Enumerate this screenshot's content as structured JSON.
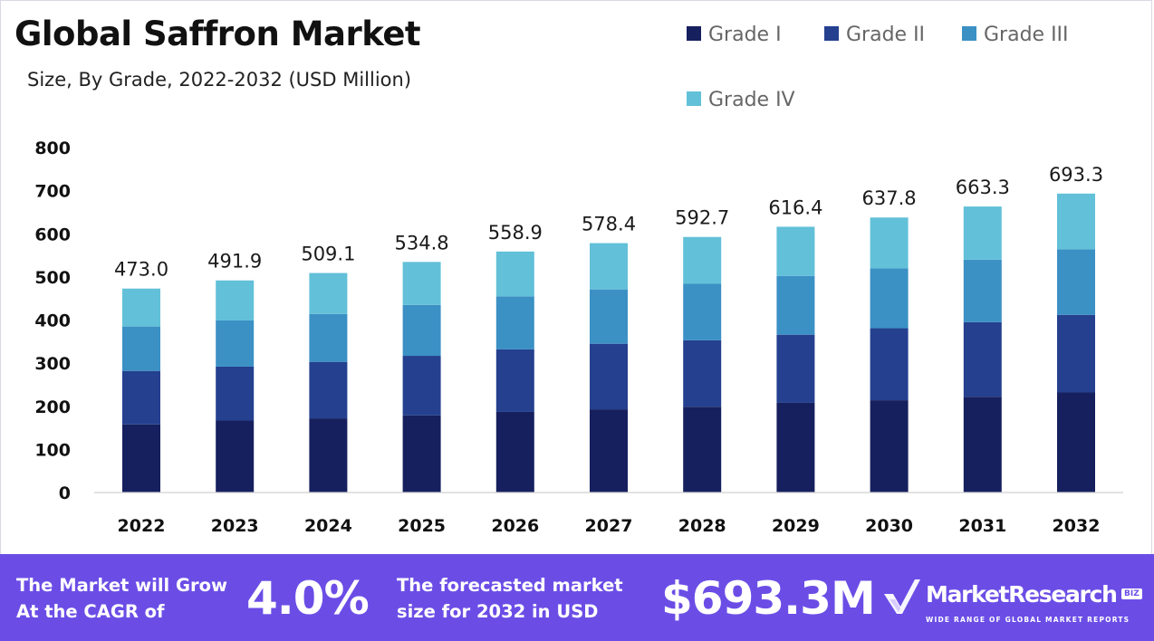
{
  "header": {
    "title": "Global Saffron Market",
    "subtitle": "Size, By Grade, 2022-2032 (USD Million)"
  },
  "colors": {
    "grade_i": "#16205e",
    "grade_ii": "#24408f",
    "grade_iii": "#3b90c4",
    "grade_iv": "#62c0d8",
    "footer_bg": "#6b4de6"
  },
  "chart_data": {
    "type": "bar",
    "stacked": true,
    "categories": [
      "2022",
      "2023",
      "2024",
      "2025",
      "2026",
      "2027",
      "2028",
      "2029",
      "2030",
      "2031",
      "2032"
    ],
    "series": [
      {
        "name": "Grade I",
        "values": [
          158,
          167,
          172,
          179,
          187,
          193,
          199,
          208,
          214,
          222,
          232
        ]
      },
      {
        "name": "Grade II",
        "values": [
          124,
          125,
          131,
          138,
          145,
          152,
          154,
          158,
          167,
          173,
          180
        ]
      },
      {
        "name": "Grade III",
        "values": [
          103,
          107,
          111,
          118,
          123,
          126,
          131,
          136,
          139,
          145,
          152
        ]
      },
      {
        "name": "Grade IV",
        "values": [
          88,
          92.9,
          95.1,
          99.8,
          103.9,
          107.4,
          108.7,
          114.4,
          117.8,
          123.3,
          129.3
        ]
      }
    ],
    "totals": [
      "473.0",
      "491.9",
      "509.1",
      "534.8",
      "558.9",
      "578.4",
      "592.7",
      "616.4",
      "637.8",
      "663.3",
      "693.3"
    ],
    "ylim": [
      0,
      800
    ],
    "yticks": [
      0,
      100,
      200,
      300,
      400,
      500,
      600,
      700,
      800
    ],
    "xlabel": "",
    "ylabel": "",
    "legend_position": "top-right",
    "grid": false
  },
  "footer": {
    "cagr_label_line1": "The Market will Grow",
    "cagr_label_line2": "At the CAGR of",
    "cagr_value": "4.0%",
    "forecast_label_line1": "The forecasted market",
    "forecast_label_line2": "size for 2032 in USD",
    "forecast_value": "$693.3M",
    "brand_name": "MarketResearch",
    "brand_tag": "BIZ",
    "brand_tagline": "WIDE RANGE OF GLOBAL MARKET REPORTS"
  }
}
